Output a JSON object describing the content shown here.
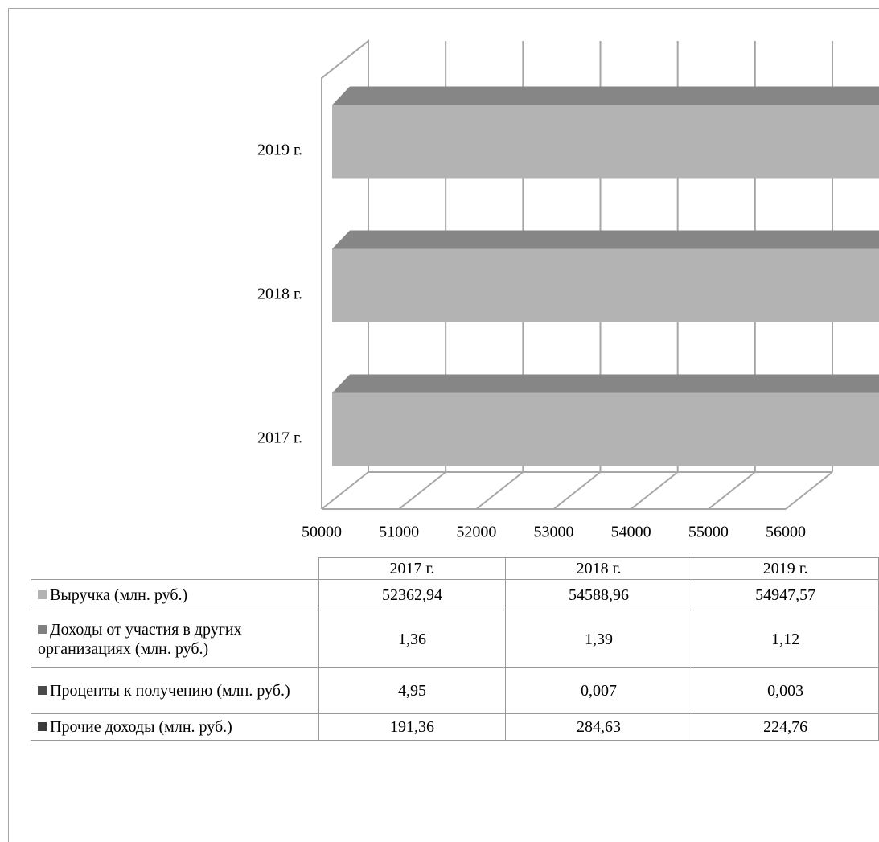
{
  "chart_data": {
    "type": "bar3d_stacked_horizontal",
    "categories": [
      "2017 г.",
      "2018 г.",
      "2019 г."
    ],
    "series": [
      {
        "name": "Выручка (млн. руб.)",
        "color": "#b3b3b3",
        "values": [
          52362.94,
          54588.96,
          54947.57
        ],
        "value_labels": [
          "52362,94",
          "54588,96",
          "54947,57"
        ],
        "show_labels": true
      },
      {
        "name": "Доходы от участия в других организациях (млн. руб.)",
        "color": "#808080",
        "values": [
          1.36,
          1.39,
          1.12
        ],
        "value_labels": [
          "1,36",
          "1,39",
          "1,12"
        ],
        "show_labels": false
      },
      {
        "name": "Проценты к получению (млн. руб.)",
        "color": "#4a4a4a",
        "values": [
          4.95,
          0.007,
          0.003
        ],
        "value_labels": [
          "4,95",
          "0,007",
          "0,003"
        ],
        "show_labels": false
      },
      {
        "name": "Прочие доходы (млн. руб.)",
        "color": "#3c3c3c",
        "values": [
          191.36,
          284.63,
          224.76
        ],
        "value_labels": [
          "191,36",
          "284,63",
          "224,76"
        ],
        "show_labels": true
      }
    ],
    "xlim": [
      50000,
      56000
    ],
    "xticks": [
      50000,
      51000,
      52000,
      53000,
      54000,
      55000,
      56000
    ],
    "grid": true,
    "data_table": true
  }
}
